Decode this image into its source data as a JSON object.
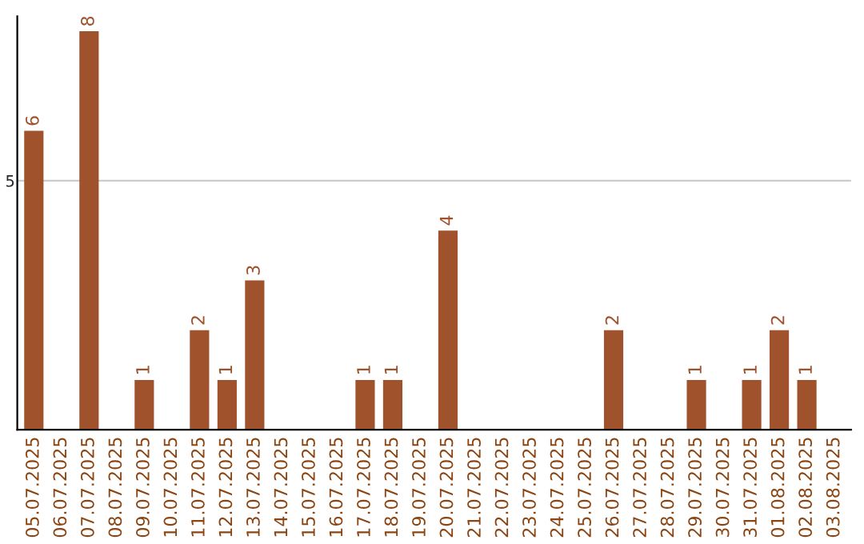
{
  "chart_data": {
    "type": "bar",
    "categories": [
      "05.07.2025",
      "06.07.2025",
      "07.07.2025",
      "08.07.2025",
      "09.07.2025",
      "10.07.2025",
      "11.07.2025",
      "12.07.2025",
      "13.07.2025",
      "14.07.2025",
      "15.07.2025",
      "16.07.2025",
      "17.07.2025",
      "18.07.2025",
      "19.07.2025",
      "20.07.2025",
      "21.07.2025",
      "22.07.2025",
      "23.07.2025",
      "24.07.2025",
      "25.07.2025",
      "26.07.2025",
      "27.07.2025",
      "28.07.2025",
      "29.07.2025",
      "30.07.2025",
      "31.07.2025",
      "01.08.2025",
      "02.08.2025",
      "03.08.2025"
    ],
    "values": [
      6,
      0,
      8,
      0,
      1,
      0,
      2,
      1,
      3,
      0,
      0,
      0,
      1,
      1,
      0,
      4,
      0,
      0,
      0,
      0,
      0,
      2,
      0,
      0,
      1,
      0,
      1,
      2,
      1,
      0
    ],
    "value_labels": [
      "6",
      null,
      "8",
      null,
      "1",
      null,
      "2",
      "1",
      "3",
      null,
      null,
      null,
      "1",
      "1",
      null,
      "4",
      null,
      null,
      null,
      null,
      null,
      "2",
      null,
      null,
      "1",
      null,
      "1",
      "2",
      "1",
      null
    ],
    "color": "#a0522d",
    "ylim": [
      0,
      8.3
    ],
    "yticks": [
      5
    ],
    "grid": "y",
    "legend": false
  }
}
